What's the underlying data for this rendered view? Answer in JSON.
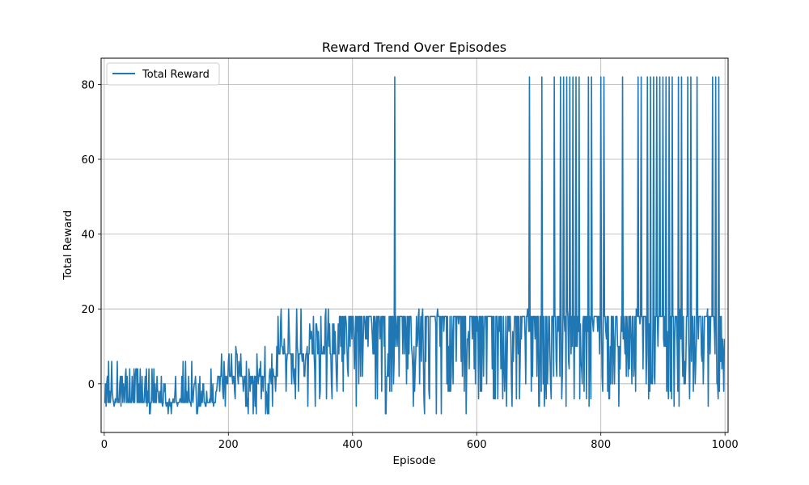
{
  "chart_data": {
    "type": "line",
    "title": "Reward Trend Over Episodes",
    "xlabel": "Episode",
    "ylabel": "Total Reward",
    "xlim": [
      -5,
      1005
    ],
    "ylim": [
      -13,
      87
    ],
    "xticks": [
      0,
      200,
      400,
      600,
      800,
      1000
    ],
    "yticks": [
      0,
      20,
      40,
      60,
      80
    ],
    "grid": true,
    "legend_position": "top-left",
    "color": "#1f77b4",
    "series": [
      {
        "name": "Total Reward",
        "x_start": 0,
        "x_end": 999,
        "phases": [
          {
            "from": 0,
            "to": 180,
            "min": -8,
            "max": 6,
            "base": -5
          },
          {
            "from": 180,
            "to": 280,
            "min": -8,
            "max": 10,
            "base": 2
          },
          {
            "from": 280,
            "to": 380,
            "min": -6,
            "max": 20,
            "base": 8
          },
          {
            "from": 380,
            "to": 600,
            "min": -8,
            "max": 20,
            "base": 18
          },
          {
            "from": 600,
            "to": 1000,
            "min": -6,
            "max": 20,
            "base": 18
          }
        ],
        "spike_value": 82,
        "spike_episodes": [
          468,
          685,
          705,
          725,
          735,
          740,
          745,
          750,
          755,
          760,
          765,
          780,
          785,
          800,
          805,
          835,
          860,
          865,
          875,
          880,
          885,
          890,
          895,
          900,
          905,
          910,
          915,
          925,
          930,
          940,
          945,
          955,
          980,
          985,
          990
        ]
      }
    ]
  }
}
